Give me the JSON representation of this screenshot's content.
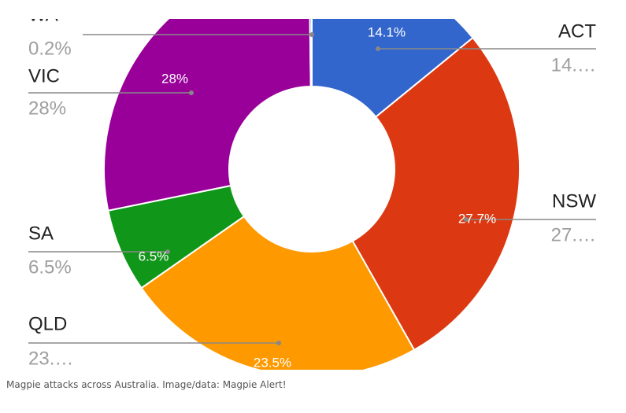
{
  "chart_data": {
    "type": "donut",
    "categories": [
      "ACT",
      "NSW",
      "QLD",
      "SA",
      "VIC",
      "WA"
    ],
    "values": [
      14.1,
      27.7,
      23.5,
      6.5,
      28,
      0.2
    ],
    "value_labels": [
      "14.1%",
      "27.7%",
      "23.5%",
      "6.5%",
      "28%",
      null
    ],
    "legend_value_labels": [
      "14.…",
      "27.…",
      "23.…",
      "6.5%",
      "28%",
      "0.2%"
    ],
    "colors": [
      "#3366cc",
      "#dc3912",
      "#ff9900",
      "#109618",
      "#990099",
      "#0099c6"
    ]
  },
  "caption": "Magpie attacks across Australia. Image/data: Magpie Alert!"
}
